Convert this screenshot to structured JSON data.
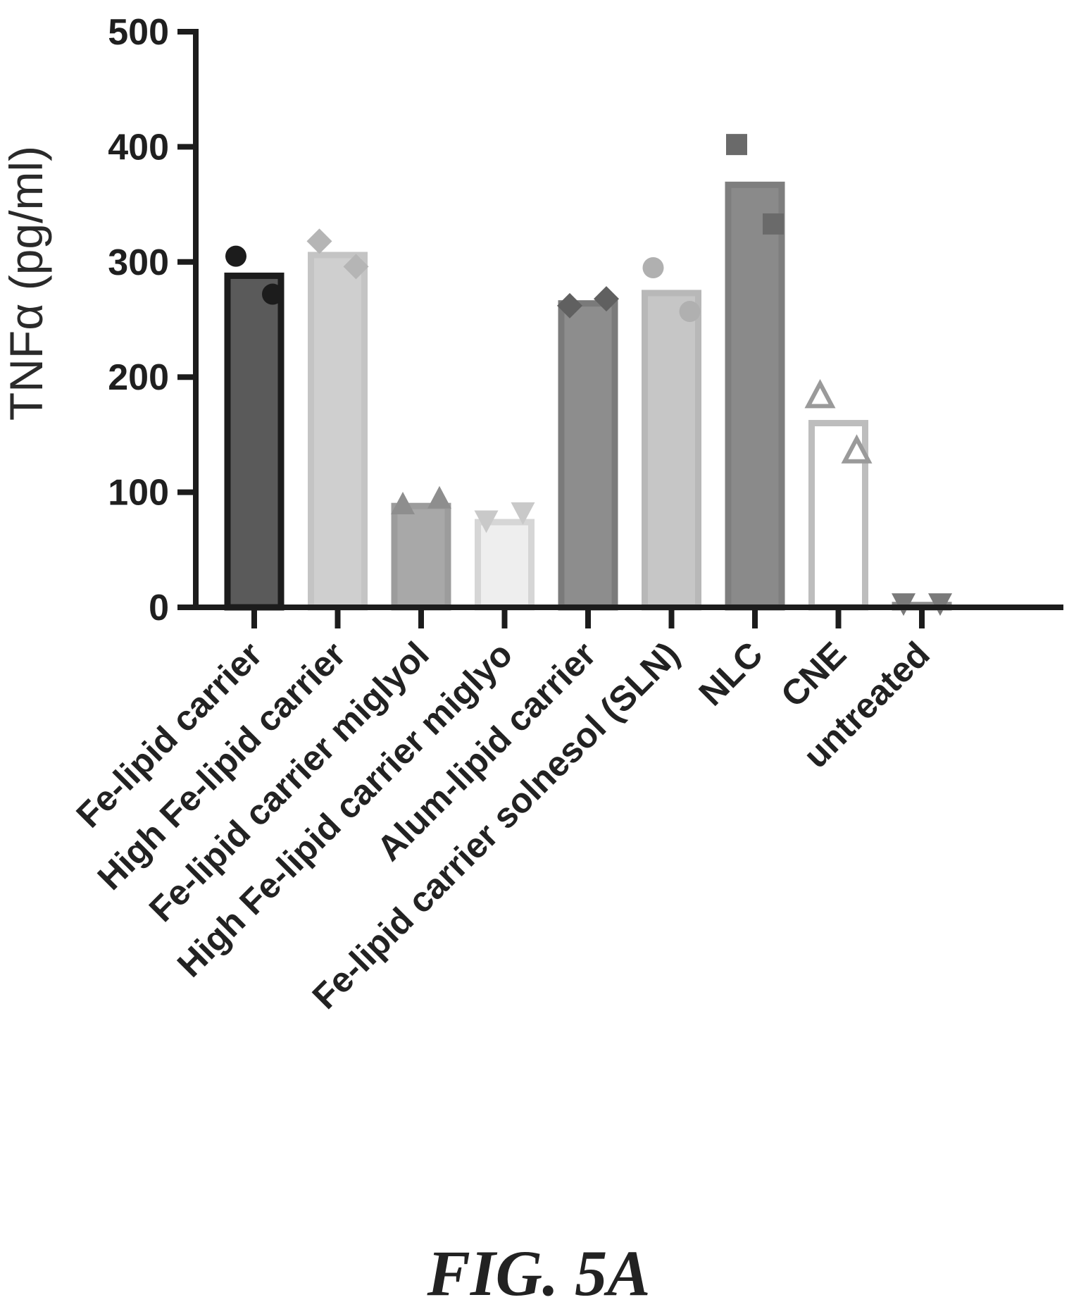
{
  "chart_data": {
    "type": "bar",
    "ylabel": "TNFα (pg/ml)",
    "xlabel": "",
    "ylim": [
      0,
      500
    ],
    "yticks": [
      0,
      100,
      200,
      300,
      400,
      500
    ],
    "grid": false,
    "categories": [
      "Fe-lipid carrier",
      "High Fe-lipid carrier",
      "Fe-lipid carrier miglyol",
      "High Fe-lipid carrier miglyo",
      "Alum-lipid carrier",
      "Fe-lipid carrier solnesol (SLN)",
      "NLC",
      "CNE",
      "untreated"
    ],
    "values": [
      288,
      306,
      88,
      74,
      264,
      273,
      367,
      160,
      2
    ],
    "points": [
      [
        305,
        272
      ],
      [
        318,
        296
      ],
      [
        90,
        95
      ],
      [
        75,
        82
      ],
      [
        262,
        268
      ],
      [
        295,
        257
      ],
      [
        402,
        333
      ],
      [
        184,
        136
      ],
      [
        3,
        3
      ]
    ],
    "marker_shapes": [
      "circle",
      "diamond",
      "triangle-up",
      "triangle-down",
      "diamond",
      "circle",
      "square",
      "triangle-up-open",
      "triangle-down"
    ],
    "bar_fill_colors": [
      "#5a5a5a",
      "#cfcfcf",
      "#a8a8a8",
      "#eeeeee",
      "#8d8d8d",
      "#c6c6c6",
      "#8a8a8a",
      "#ffffff",
      "#9a9a9a"
    ],
    "bar_edge_colors": [
      "#1c1c1c",
      "#c4c4c4",
      "#9c9c9c",
      "#d6d6d6",
      "#7a7a7a",
      "#b8b8b8",
      "#7e7e7e",
      "#bdbdbd",
      "#8e8e8e"
    ],
    "marker_colors": [
      "#1c1c1c",
      "#b5b5b5",
      "#8e8e8e",
      "#c9c9c9",
      "#606060",
      "#b0b0b0",
      "#6a6a6a",
      "#9a9a9a",
      "#7a7a7a"
    ],
    "caption": "FIG. 5A"
  }
}
